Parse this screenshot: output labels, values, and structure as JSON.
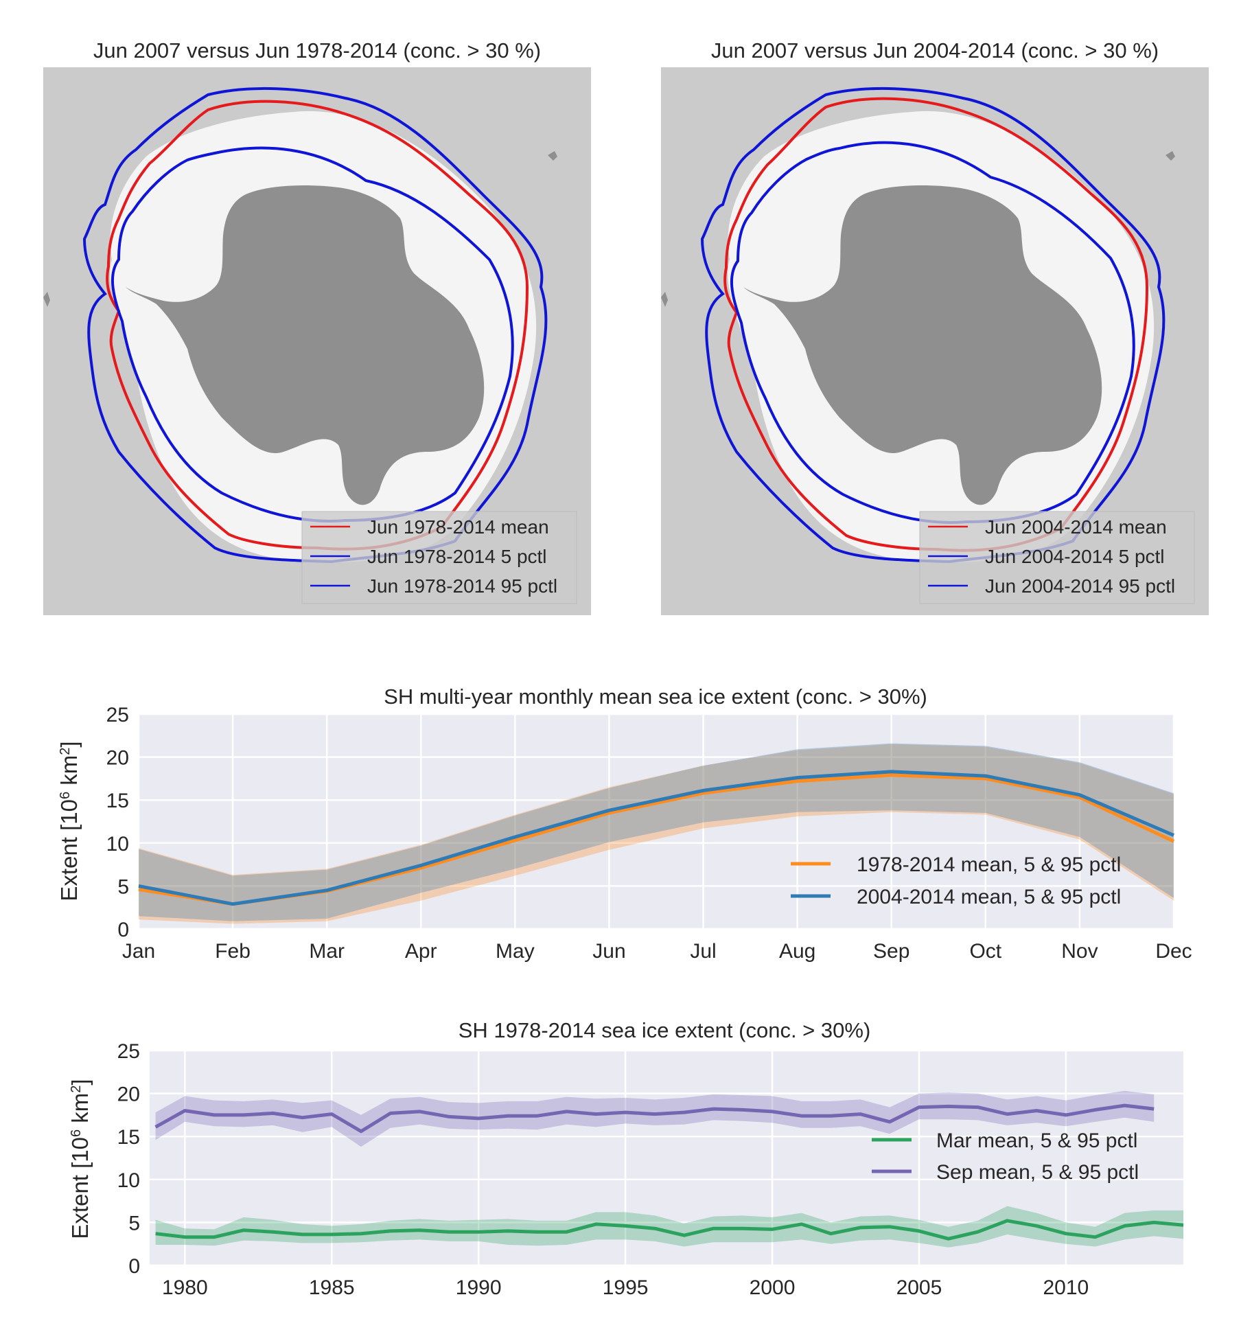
{
  "maps": [
    {
      "title": "Jun 2007 versus Jun 1978-2014 (conc. > 30 %)",
      "legend": [
        "Jun 1978-2014 mean",
        "Jun 1978-2014 5 pctl",
        "Jun 1978-2014 95 pctl"
      ]
    },
    {
      "title": "Jun 2007 versus Jun 2004-2014 (conc. > 30 %)",
      "legend": [
        "Jun 2004-2014 mean",
        "Jun 2004-2014 5 pctl",
        "Jun 2004-2014 95 pctl"
      ]
    }
  ],
  "colors": {
    "map_background": "#cbcbcb",
    "ice_2007": "#f4f4f4",
    "land": "#8f8f8f",
    "mean_line": "#e41a1c",
    "pctl_line": "#0f15d6",
    "plot_background": "#eaeaf2",
    "orange": "#ff8c1e",
    "blue": "#2f7bb5",
    "green": "#2ca25f",
    "purple": "#7566b2"
  },
  "chart_data": [
    {
      "type": "line",
      "title": "SH multi-year monthly mean sea ice extent (conc. > 30%)",
      "ylabel": "Extent [10⁶ km²]",
      "ylim": [
        0,
        25
      ],
      "yticks": [
        "0",
        "5",
        "10",
        "15",
        "20",
        "25"
      ],
      "categories": [
        "Jan",
        "Feb",
        "Mar",
        "Apr",
        "May",
        "Jun",
        "Jul",
        "Aug",
        "Sep",
        "Oct",
        "Nov",
        "Dec"
      ],
      "grid": true,
      "legend_position": "lower-right",
      "series": [
        {
          "name": "1978-2014 mean, 5 & 95 pctl",
          "color": "orange",
          "mean": [
            4.6,
            2.9,
            4.4,
            7.1,
            10.3,
            13.5,
            15.8,
            17.2,
            17.9,
            17.5,
            15.3,
            10.2
          ],
          "p5": [
            1.1,
            0.6,
            0.9,
            3.3,
            6.2,
            9.2,
            11.7,
            13.1,
            13.6,
            13.3,
            10.4,
            3.3
          ],
          "p95": [
            9.4,
            6.3,
            7.0,
            9.8,
            13.3,
            16.5,
            19.0,
            20.8,
            21.5,
            21.2,
            19.3,
            15.7
          ]
        },
        {
          "name": "2004-2014 mean, 5 & 95 pctl",
          "color": "blue",
          "mean": [
            5.0,
            2.9,
            4.5,
            7.4,
            10.7,
            13.8,
            16.1,
            17.6,
            18.3,
            17.8,
            15.6,
            10.9
          ],
          "p5": [
            1.5,
            0.9,
            1.2,
            4.2,
            7.0,
            10.1,
            12.4,
            13.6,
            13.8,
            13.5,
            10.7,
            3.6
          ],
          "p95": [
            9.3,
            6.2,
            6.9,
            9.7,
            13.2,
            16.4,
            19.0,
            20.9,
            21.6,
            21.3,
            19.4,
            15.8
          ]
        }
      ]
    },
    {
      "type": "line",
      "title": "SH 1978-2014 sea ice extent (conc. > 30%)",
      "ylabel": "Extent [10⁶ km²]",
      "ylim": [
        0,
        25
      ],
      "yticks": [
        "0",
        "5",
        "10",
        "15",
        "20",
        "25"
      ],
      "xlim": [
        1978.8,
        2014
      ],
      "xticks": [
        "1980",
        "1985",
        "1990",
        "1995",
        "2000",
        "2005",
        "2010"
      ],
      "grid": true,
      "legend_position": "center-right",
      "series": [
        {
          "name": "Mar mean, 5 & 95 pctl",
          "color": "green",
          "x": [
            1979,
            1980,
            1981,
            1982,
            1983,
            1984,
            1985,
            1986,
            1987,
            1988,
            1989,
            1990,
            1991,
            1992,
            1993,
            1994,
            1995,
            1996,
            1997,
            1998,
            1999,
            2000,
            2001,
            2002,
            2003,
            2004,
            2005,
            2006,
            2007,
            2008,
            2009,
            2010,
            2011,
            2012,
            2013,
            2014
          ],
          "mean": [
            3.7,
            3.3,
            3.3,
            4.1,
            3.9,
            3.6,
            3.6,
            3.7,
            4.0,
            4.1,
            3.9,
            3.9,
            4.0,
            3.9,
            3.9,
            4.8,
            4.6,
            4.3,
            3.5,
            4.3,
            4.3,
            4.2,
            4.8,
            3.7,
            4.4,
            4.5,
            4.0,
            3.1,
            3.9,
            5.2,
            4.6,
            3.7,
            3.3,
            4.6,
            5.0,
            4.7
          ],
          "p5": [
            2.4,
            2.4,
            2.3,
            2.9,
            2.8,
            2.6,
            2.6,
            2.7,
            2.9,
            3.0,
            2.8,
            2.8,
            2.4,
            2.3,
            2.4,
            3.0,
            3.0,
            2.8,
            2.2,
            2.7,
            2.7,
            2.7,
            3.0,
            2.5,
            2.9,
            3.0,
            2.6,
            2.1,
            2.6,
            3.6,
            3.0,
            2.5,
            2.2,
            3.0,
            3.4,
            3.1
          ],
          "p95": [
            5.3,
            4.3,
            4.2,
            5.6,
            5.3,
            4.8,
            4.6,
            4.8,
            5.2,
            5.4,
            5.2,
            5.3,
            5.4,
            5.2,
            5.2,
            6.2,
            6.2,
            5.8,
            4.9,
            5.7,
            5.8,
            5.6,
            6.1,
            5.0,
            5.7,
            5.8,
            5.3,
            4.5,
            5.2,
            6.9,
            6.1,
            5.0,
            4.5,
            6.1,
            6.4,
            6.4
          ]
        },
        {
          "name": "Sep mean, 5 & 95 pctl",
          "color": "purple",
          "x": [
            1979,
            1980,
            1981,
            1982,
            1983,
            1984,
            1985,
            1986,
            1987,
            1988,
            1989,
            1990,
            1991,
            1992,
            1993,
            1994,
            1995,
            1996,
            1997,
            1998,
            1999,
            2000,
            2001,
            2002,
            2003,
            2004,
            2005,
            2006,
            2007,
            2008,
            2009,
            2010,
            2011,
            2012,
            2013
          ],
          "mean": [
            16.1,
            18.0,
            17.5,
            17.5,
            17.7,
            17.2,
            17.6,
            15.6,
            17.7,
            17.9,
            17.3,
            17.1,
            17.4,
            17.4,
            17.9,
            17.6,
            17.8,
            17.6,
            17.8,
            18.2,
            18.1,
            17.9,
            17.4,
            17.4,
            17.6,
            16.7,
            18.4,
            18.5,
            18.4,
            17.6,
            18.0,
            17.5,
            18.1,
            18.6,
            18.2
          ],
          "p5": [
            14.6,
            16.7,
            16.2,
            16.1,
            16.3,
            15.5,
            16.1,
            13.8,
            16.0,
            16.4,
            15.9,
            15.8,
            15.9,
            15.8,
            16.4,
            16.1,
            16.5,
            16.3,
            16.4,
            16.9,
            16.8,
            16.6,
            16.0,
            16.0,
            16.2,
            15.3,
            17.0,
            17.0,
            16.9,
            16.3,
            16.6,
            16.2,
            16.7,
            17.2,
            16.7
          ],
          "p95": [
            17.8,
            19.7,
            19.2,
            19.1,
            19.3,
            18.9,
            19.2,
            17.5,
            19.4,
            19.6,
            19.0,
            18.9,
            19.1,
            19.1,
            19.6,
            19.4,
            19.5,
            19.3,
            19.5,
            19.9,
            19.8,
            19.7,
            19.1,
            19.1,
            19.3,
            18.4,
            20.0,
            20.1,
            20.0,
            19.3,
            19.7,
            19.2,
            19.8,
            20.3,
            19.9
          ]
        }
      ]
    }
  ]
}
